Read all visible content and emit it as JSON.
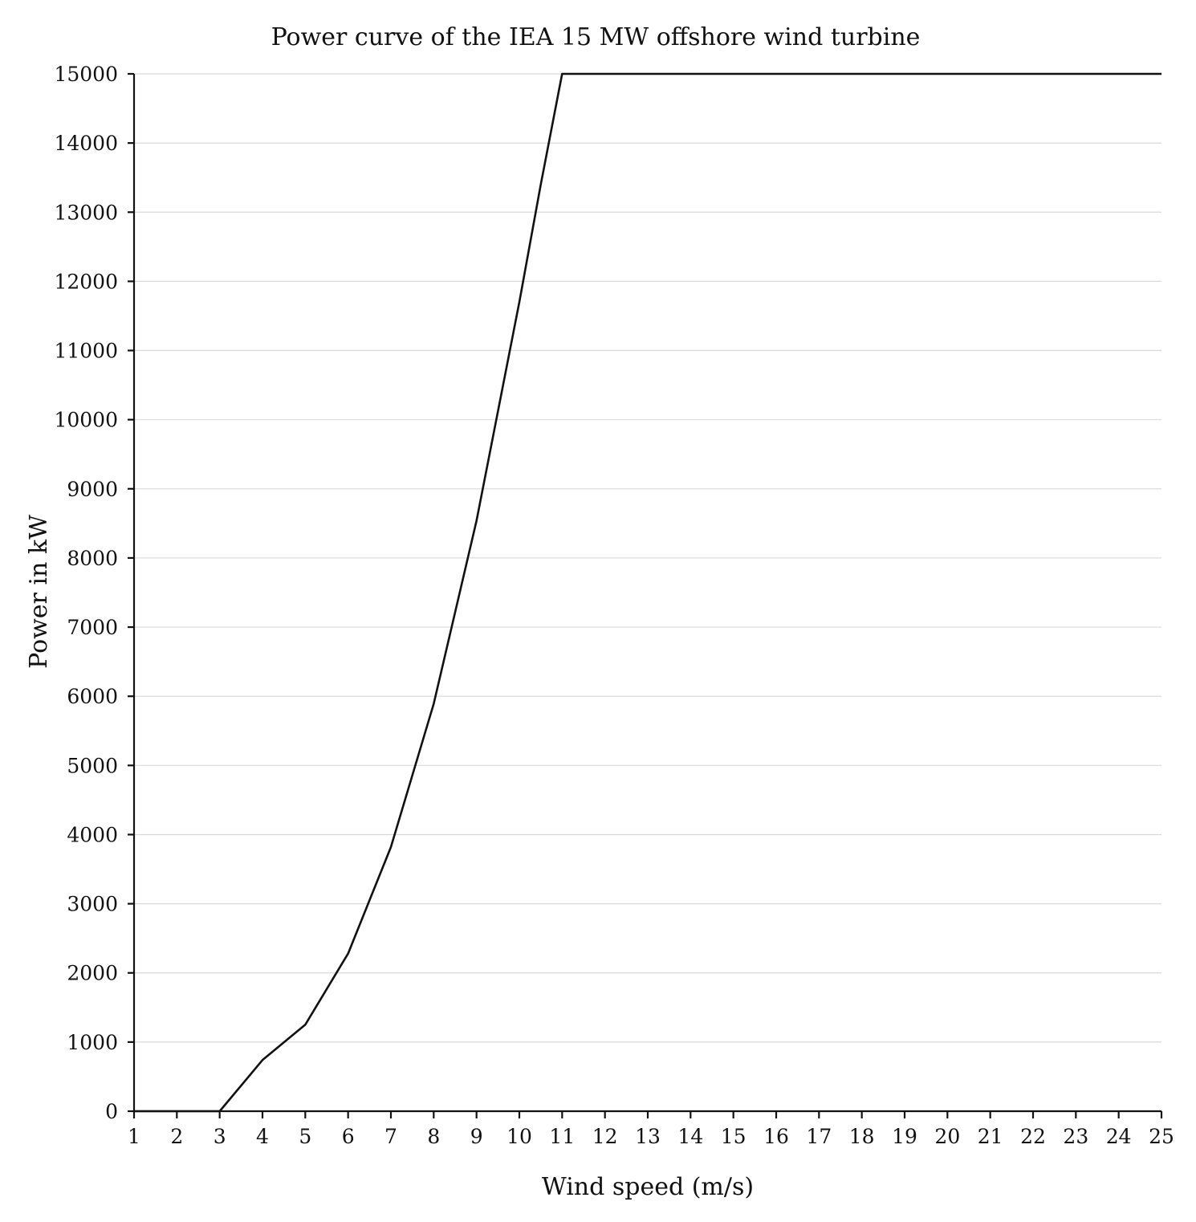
{
  "chart_data": {
    "type": "line",
    "title": "Power curve of the IEA 15 MW offshore wind turbine",
    "xlabel": "Wind speed (m/s)",
    "ylabel": "Power in kW",
    "xlim": [
      1,
      25
    ],
    "ylim": [
      0,
      15000
    ],
    "x_ticks": [
      1,
      2,
      3,
      4,
      5,
      6,
      7,
      8,
      9,
      10,
      11,
      12,
      13,
      14,
      15,
      16,
      17,
      18,
      19,
      20,
      21,
      22,
      23,
      24,
      25
    ],
    "y_ticks": [
      0,
      1000,
      2000,
      3000,
      4000,
      5000,
      6000,
      7000,
      8000,
      9000,
      10000,
      11000,
      12000,
      13000,
      14000,
      15000
    ],
    "grid": "horizontal",
    "legend": "none",
    "colors": {
      "line": "#111111",
      "grid": "#d9d9d9"
    },
    "series": [
      {
        "x": [
          1,
          2,
          3,
          4,
          5,
          6,
          7,
          8,
          9,
          10,
          10.5,
          11,
          12,
          13,
          14,
          15,
          16,
          17,
          18,
          19,
          20,
          21,
          22,
          23,
          24,
          25
        ],
        "y": [
          0,
          0,
          0,
          740,
          1250,
          2280,
          3820,
          5890,
          8540,
          11700,
          13400,
          15000,
          15000,
          15000,
          15000,
          15000,
          15000,
          15000,
          15000,
          15000,
          15000,
          15000,
          15000,
          15000,
          15000,
          15000
        ]
      }
    ]
  }
}
